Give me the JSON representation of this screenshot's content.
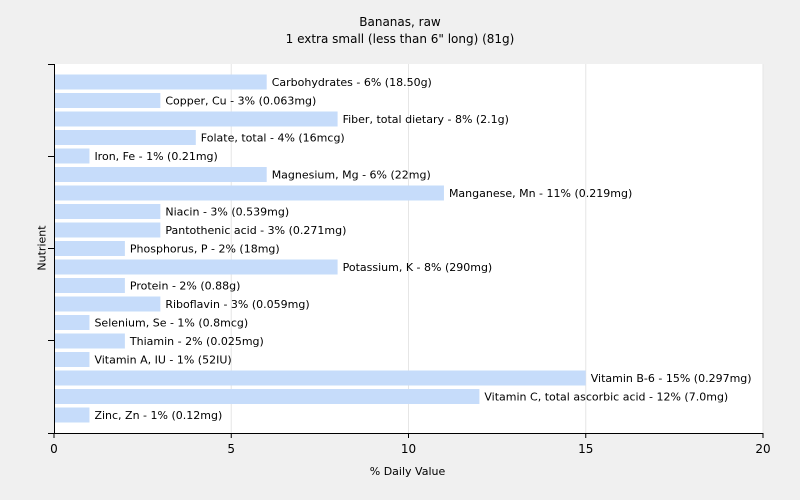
{
  "chart_data": {
    "type": "bar",
    "orientation": "horizontal",
    "title": "Bananas, raw",
    "subtitle": "1 extra small (less than 6\" long) (81g)",
    "xlabel": "% Daily Value",
    "ylabel": "Nutrient",
    "xlim": [
      0,
      20
    ],
    "xticks": [
      0,
      5,
      10,
      15,
      20
    ],
    "grid": true,
    "bar_color": "#c6dcfa",
    "categories": [
      "Carbohydrates",
      "Copper, Cu",
      "Fiber, total dietary",
      "Folate, total",
      "Iron, Fe",
      "Magnesium, Mg",
      "Manganese, Mn",
      "Niacin",
      "Pantothenic acid",
      "Phosphorus, P",
      "Potassium, K",
      "Protein",
      "Riboflavin",
      "Selenium, Se",
      "Thiamin",
      "Vitamin A, IU",
      "Vitamin B-6",
      "Vitamin C, total ascorbic acid",
      "Zinc, Zn"
    ],
    "values": [
      6,
      3,
      8,
      4,
      1,
      6,
      11,
      3,
      3,
      2,
      8,
      2,
      3,
      1,
      2,
      1,
      15,
      12,
      1
    ],
    "labels": [
      "Carbohydrates - 6% (18.50g)",
      "Copper, Cu - 3% (0.063mg)",
      "Fiber, total dietary - 8% (2.1g)",
      "Folate, total - 4% (16mcg)",
      "Iron, Fe - 1% (0.21mg)",
      "Magnesium, Mg - 6% (22mg)",
      "Manganese, Mn - 11% (0.219mg)",
      "Niacin - 3% (0.539mg)",
      "Pantothenic acid - 3% (0.271mg)",
      "Phosphorus, P - 2% (18mg)",
      "Potassium, K - 8% (290mg)",
      "Protein - 2% (0.88g)",
      "Riboflavin - 3% (0.059mg)",
      "Selenium, Se - 1% (0.8mcg)",
      "Thiamin - 2% (0.025mg)",
      "Vitamin A, IU - 1% (52IU)",
      "Vitamin B-6 - 15% (0.297mg)",
      "Vitamin C, total ascorbic acid - 12% (7.0mg)",
      "Zinc, Zn - 1% (0.12mg)"
    ]
  }
}
